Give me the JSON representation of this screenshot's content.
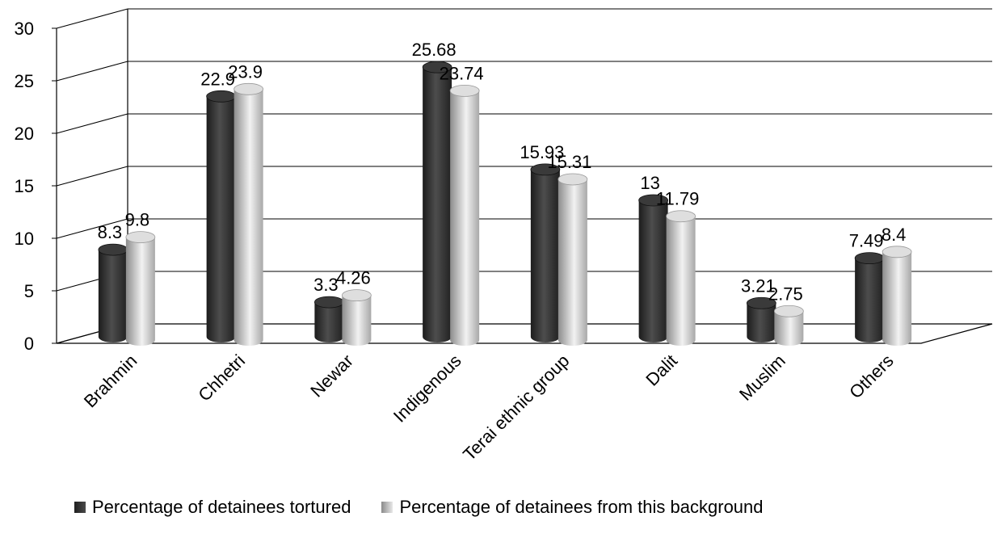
{
  "chart_data": {
    "type": "bar",
    "categories": [
      "Brahmin",
      "Chhetri",
      "Newar",
      "Indigenous",
      "Terai ethnic group",
      "Dalit",
      "Muslim",
      "Others"
    ],
    "series": [
      {
        "name": "Percentage of detainees tortured",
        "values": [
          8.3,
          22.9,
          3.3,
          25.68,
          15.93,
          13,
          3.21,
          7.49
        ],
        "labels": [
          "8.3",
          "22.9",
          "3.3",
          "25.68",
          "15.93",
          "13",
          "3.21",
          "7.49"
        ],
        "color": "#2b2b2b"
      },
      {
        "name": "Percentage of detainees from this background",
        "values": [
          9.8,
          23.9,
          4.26,
          23.74,
          15.31,
          11.79,
          2.75,
          8.4
        ],
        "labels": [
          "9.8",
          "23.9",
          "4.26",
          "23.74",
          "15.31",
          "11.79",
          "2.75",
          "8.4"
        ],
        "color": "#c8c8c8"
      }
    ],
    "ylim": [
      0,
      30
    ],
    "yticks": [
      "0",
      "5",
      "10",
      "15",
      "20",
      "25",
      "30"
    ],
    "grid": true,
    "legend": "bottom",
    "style": "3d-cylinder"
  }
}
